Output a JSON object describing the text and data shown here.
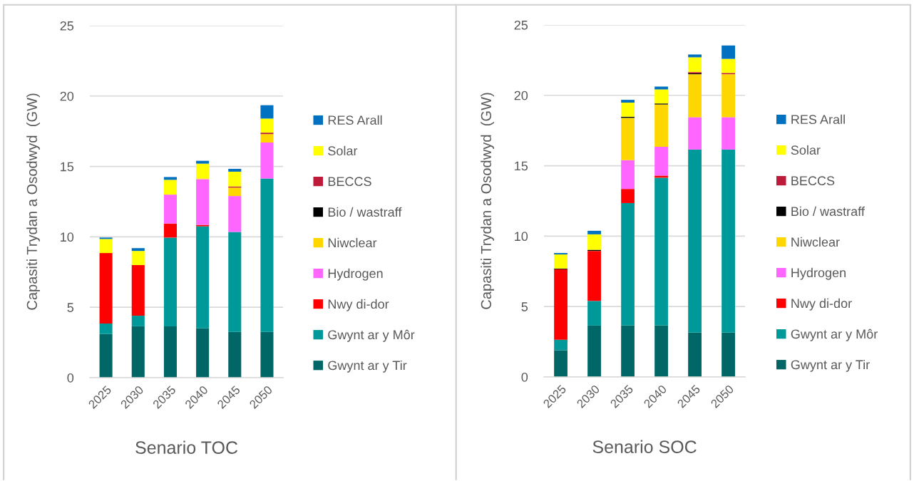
{
  "chart_data": [
    {
      "type": "bar",
      "stacked": true,
      "xlabel": "Senario TOC",
      "ylabel": "Capasiti Trydan a Osodwyd  (GW)",
      "categories": [
        "2025",
        "2030",
        "2035",
        "2040",
        "2045",
        "2050"
      ],
      "series": [
        {
          "name": "Gwynt ar y Tir",
          "color": "#006666",
          "values": [
            3.1,
            3.65,
            3.65,
            3.5,
            3.25,
            3.25
          ]
        },
        {
          "name": "Gwynt ar y Môr",
          "color": "#009999",
          "values": [
            0.75,
            0.75,
            6.3,
            7.25,
            7.1,
            10.9
          ]
        },
        {
          "name": "Nwy di-dor",
          "color": "#ff0000",
          "values": [
            5.0,
            3.6,
            1.0,
            0.1,
            null,
            null
          ]
        },
        {
          "name": "Hydrogen",
          "color": "#ff66ff",
          "values": [
            null,
            null,
            2.05,
            3.25,
            2.55,
            2.55
          ]
        },
        {
          "name": "Niwclear",
          "color": "#ffd700",
          "values": [
            null,
            null,
            null,
            0.05,
            0.6,
            0.6
          ]
        },
        {
          "name": "Bio / wastraff",
          "color": "#000000",
          "values": [
            null,
            null,
            null,
            null,
            null,
            null
          ]
        },
        {
          "name": "BECCS",
          "color": "#be1a3a",
          "values": [
            null,
            null,
            null,
            null,
            0.08,
            0.1
          ]
        },
        {
          "name": "Solar",
          "color": "#ffff00",
          "values": [
            1.0,
            1.0,
            1.05,
            1.05,
            1.05,
            1.0
          ]
        },
        {
          "name": "RES Arall",
          "color": "#0070c0",
          "values": [
            0.1,
            0.2,
            0.2,
            0.2,
            0.2,
            0.95
          ]
        }
      ],
      "ylim": [
        0,
        25
      ],
      "yticks": [
        0,
        5,
        10,
        15,
        20,
        25
      ],
      "grid": "y",
      "legend": "right"
    },
    {
      "type": "bar",
      "stacked": true,
      "xlabel": "Senario SOC",
      "ylabel": "Capasiti Trydan a Osodwyd  (GW)",
      "categories": [
        "2025",
        "2030",
        "2035",
        "2040",
        "2045",
        "2050"
      ],
      "series": [
        {
          "name": "Gwynt ar y Tir",
          "color": "#006666",
          "values": [
            1.9,
            3.65,
            3.65,
            3.65,
            3.15,
            3.15
          ]
        },
        {
          "name": "Gwynt ar y Môr",
          "color": "#009999",
          "values": [
            0.75,
            1.75,
            8.7,
            10.5,
            13.0,
            13.0
          ]
        },
        {
          "name": "Nwy di-dor",
          "color": "#ff0000",
          "values": [
            5.0,
            3.55,
            1.0,
            0.15,
            null,
            null
          ]
        },
        {
          "name": "Hydrogen",
          "color": "#ff66ff",
          "values": [
            null,
            null,
            2.05,
            2.05,
            2.3,
            2.3
          ]
        },
        {
          "name": "Niwclear",
          "color": "#ffd700",
          "values": [
            null,
            null,
            3.0,
            3.0,
            3.05,
            3.05
          ]
        },
        {
          "name": "Bio / wastraff",
          "color": "#000000",
          "values": [
            0.05,
            0.08,
            0.08,
            0.07,
            0.06,
            null
          ]
        },
        {
          "name": "BECCS",
          "color": "#be1a3a",
          "values": [
            null,
            null,
            null,
            null,
            0.09,
            0.09
          ]
        },
        {
          "name": "Solar",
          "color": "#ffff00",
          "values": [
            1.0,
            1.1,
            1.0,
            1.0,
            1.05,
            1.0
          ]
        },
        {
          "name": "RES Arall",
          "color": "#0070c0",
          "values": [
            0.1,
            0.25,
            0.2,
            0.2,
            0.2,
            0.95
          ]
        }
      ],
      "ylim": [
        0,
        25
      ],
      "yticks": [
        0,
        5,
        10,
        15,
        20,
        25
      ],
      "grid": "y",
      "legend": "right"
    }
  ]
}
